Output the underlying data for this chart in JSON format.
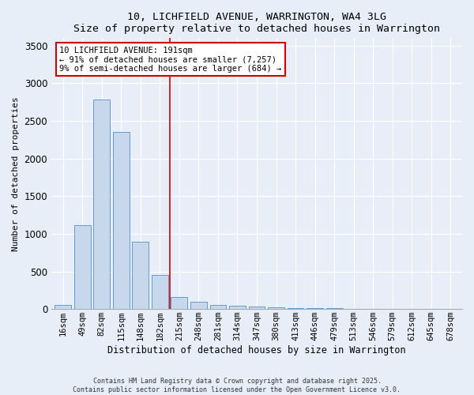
{
  "title": "10, LICHFIELD AVENUE, WARRINGTON, WA4 3LG",
  "subtitle": "Size of property relative to detached houses in Warrington",
  "xlabel": "Distribution of detached houses by size in Warrington",
  "ylabel": "Number of detached properties",
  "categories": [
    "16sqm",
    "49sqm",
    "82sqm",
    "115sqm",
    "148sqm",
    "182sqm",
    "215sqm",
    "248sqm",
    "281sqm",
    "314sqm",
    "347sqm",
    "380sqm",
    "413sqm",
    "446sqm",
    "479sqm",
    "513sqm",
    "546sqm",
    "579sqm",
    "612sqm",
    "645sqm",
    "678sqm"
  ],
  "values": [
    50,
    1120,
    2780,
    2350,
    890,
    450,
    160,
    95,
    55,
    40,
    30,
    20,
    15,
    10,
    8,
    5,
    3,
    2,
    1,
    1,
    0
  ],
  "bar_color": "#c8d8ec",
  "bar_edge_color": "#6699cc",
  "red_line_x": 5.5,
  "annotation_line1": "10 LICHFIELD AVENUE: 191sqm",
  "annotation_line2": "← 91% of detached houses are smaller (7,257)",
  "annotation_line3": "9% of semi-detached houses are larger (684) →",
  "annotation_box_color": "#ffffff",
  "annotation_box_edge_color": "#cc0000",
  "ylim": [
    0,
    3600
  ],
  "yticks": [
    0,
    500,
    1000,
    1500,
    2000,
    2500,
    3000,
    3500
  ],
  "bg_color": "#e8eef8",
  "grid_color": "#ffffff",
  "footer1": "Contains HM Land Registry data © Crown copyright and database right 2025.",
  "footer2": "Contains public sector information licensed under the Open Government Licence v3.0."
}
